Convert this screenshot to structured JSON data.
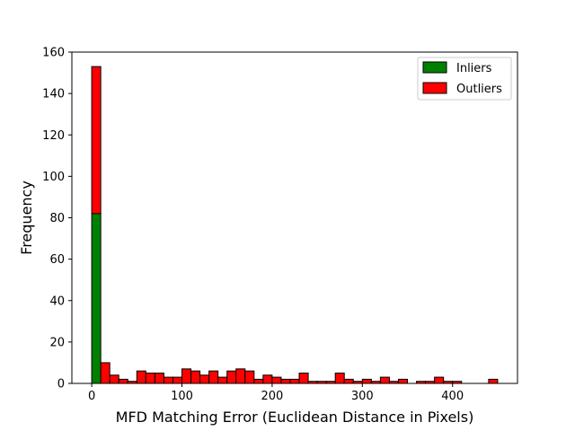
{
  "chart_data": {
    "type": "bar",
    "stacked": true,
    "title": "",
    "xlabel": "MFD Matching Error (Euclidean Distance in Pixels)",
    "ylabel": "Frequency",
    "xlim": [
      -22,
      472
    ],
    "ylim": [
      0,
      160
    ],
    "xticks": [
      0,
      100,
      200,
      300,
      400
    ],
    "yticks": [
      0,
      20,
      40,
      60,
      80,
      100,
      120,
      140,
      160
    ],
    "bin_start": 0,
    "bin_width": 10,
    "legend": {
      "placement": "top-right",
      "entries": [
        "Inliers",
        "Outliers"
      ]
    },
    "grid": false,
    "series": [
      {
        "name": "Inliers",
        "color": "#008000",
        "values": [
          82,
          0,
          0,
          0,
          0,
          0,
          0,
          0,
          0,
          0,
          0,
          0,
          0,
          0,
          0,
          0,
          0,
          0,
          0,
          0,
          0,
          0,
          0,
          0,
          0,
          0,
          0,
          0,
          0,
          0,
          0,
          0,
          0,
          0,
          0,
          0,
          0,
          0,
          0,
          0,
          0,
          0,
          0,
          0,
          0
        ]
      },
      {
        "name": "Outliers",
        "color": "#ff0000",
        "values": [
          71,
          10,
          4,
          2,
          1,
          6,
          5,
          5,
          3,
          3,
          7,
          6,
          4,
          6,
          3,
          6,
          7,
          6,
          2,
          4,
          3,
          2,
          2,
          5,
          1,
          1,
          1,
          5,
          2,
          1,
          2,
          1,
          3,
          1,
          2,
          0,
          1,
          1,
          3,
          1,
          1,
          0,
          0,
          0,
          2
        ]
      }
    ]
  }
}
